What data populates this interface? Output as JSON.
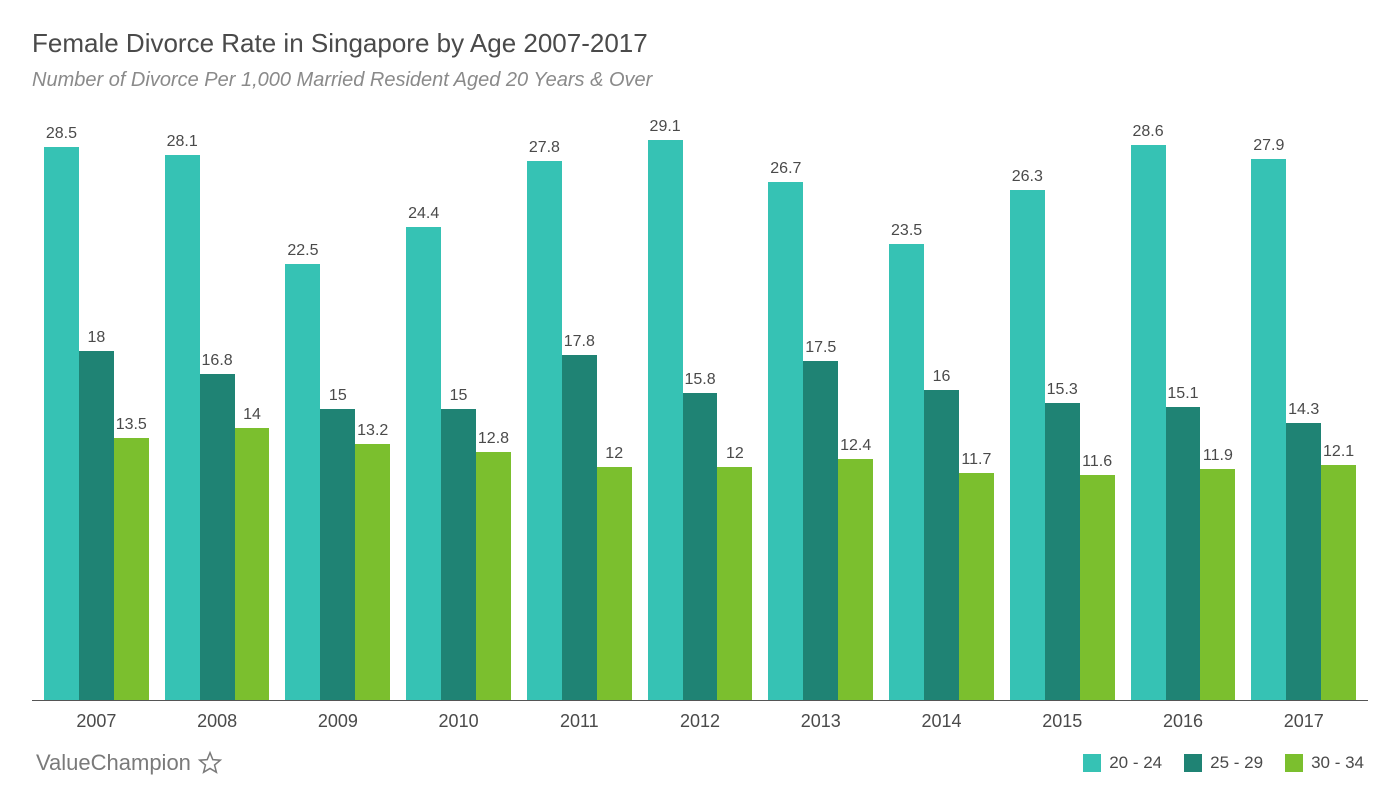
{
  "chart": {
    "type": "bar-grouped",
    "title": "Female Divorce Rate in Singapore by Age 2007-2017",
    "subtitle": "Number of Divorce Per 1,000 Married Resident Aged 20 Years & Over",
    "title_fontsize": 26,
    "subtitle_fontsize": 20,
    "title_color": "#4a4a4a",
    "subtitle_color": "#8a8a8a",
    "background_color": "#ffffff",
    "axis_line_color": "#555555",
    "bar_label_fontsize": 16,
    "x_tick_fontsize": 18,
    "ymax": 30,
    "categories": [
      "2007",
      "2008",
      "2009",
      "2010",
      "2011",
      "2012",
      "2013",
      "2014",
      "2015",
      "2016",
      "2017"
    ],
    "series": [
      {
        "name": "20 - 24",
        "color": "#36c2b4",
        "values": [
          28.5,
          28.1,
          22.5,
          24.4,
          27.8,
          29.1,
          26.7,
          23.5,
          26.3,
          28.6,
          27.9
        ]
      },
      {
        "name": "25 - 29",
        "color": "#1f8374",
        "values": [
          18,
          16.8,
          15,
          15,
          17.8,
          15.8,
          17.5,
          16,
          15.3,
          15.1,
          14.3
        ]
      },
      {
        "name": "30 - 34",
        "color": "#7bbf2e",
        "values": [
          13.5,
          14,
          13.2,
          12.8,
          12,
          12,
          12.4,
          11.7,
          11.6,
          11.9,
          12.1
        ]
      }
    ]
  },
  "brand": {
    "name": "ValueChampion",
    "color": "#7a7a7a"
  },
  "legend_fontsize": 17
}
